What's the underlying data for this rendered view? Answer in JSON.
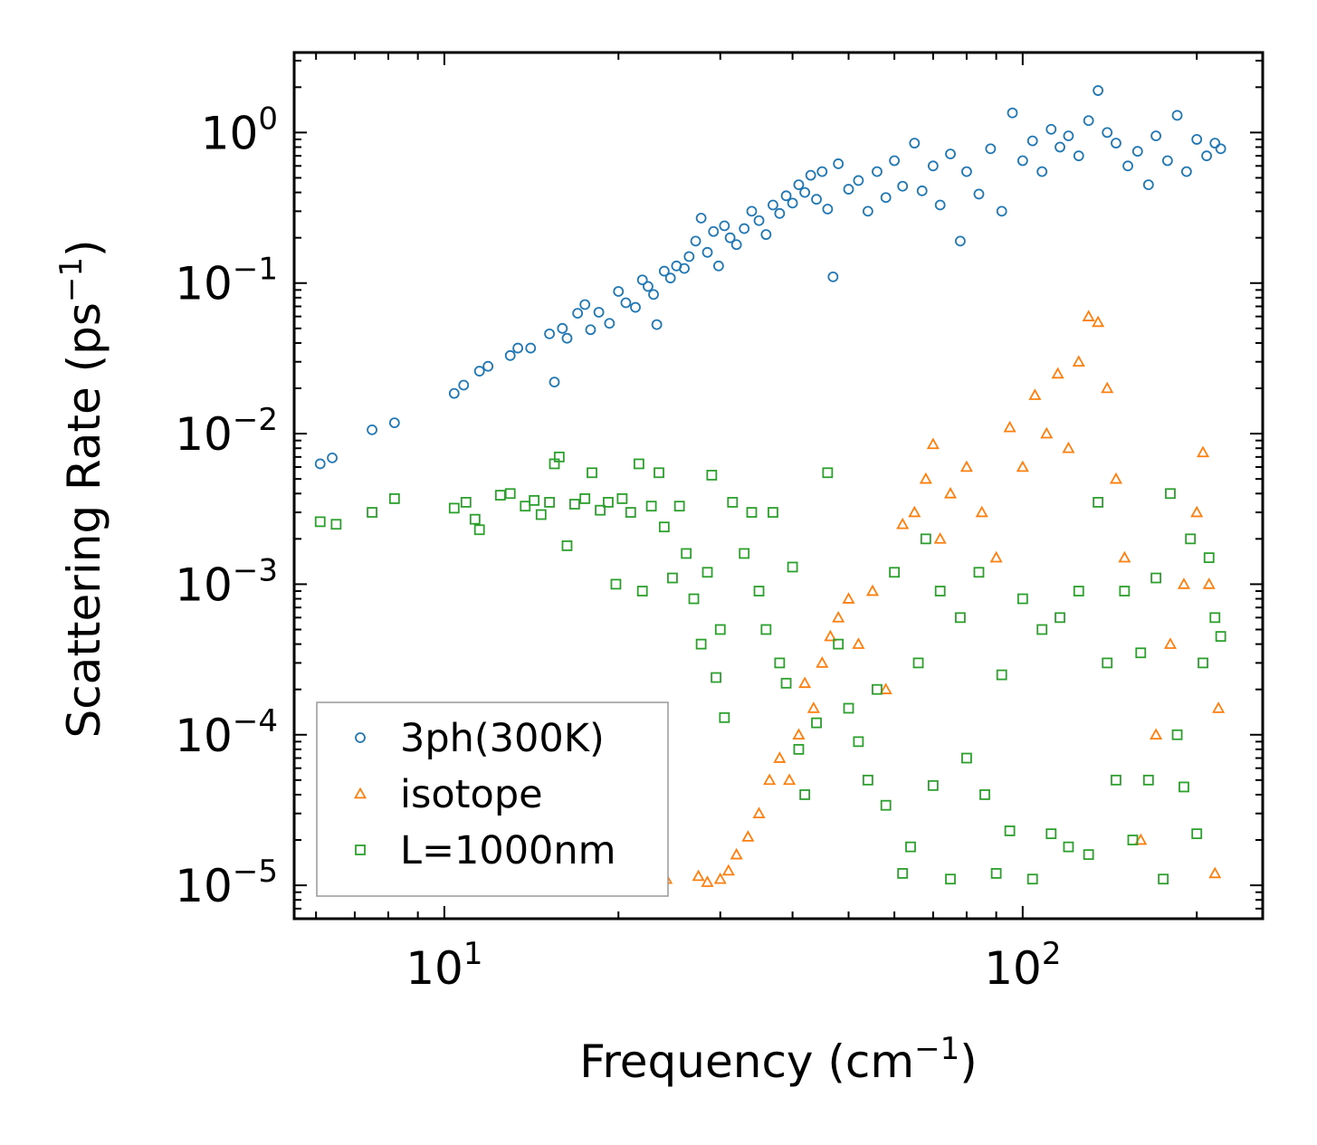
{
  "chart_data": {
    "type": "scatter",
    "title": "",
    "xlabel": "Frequency (cm⁻¹)",
    "ylabel": "Scattering Rate (ps⁻¹)",
    "xscale": "log",
    "yscale": "log",
    "xlim": [
      5.5,
      260
    ],
    "ylim": [
      6e-06,
      3.4
    ],
    "x_ticks": [
      {
        "value": 10,
        "base": "10",
        "exp": "1"
      },
      {
        "value": 100,
        "base": "10",
        "exp": "2"
      }
    ],
    "y_ticks": [
      {
        "value": 1,
        "base": "10",
        "exp": "0"
      },
      {
        "value": 0.1,
        "base": "10",
        "exp": "−1"
      },
      {
        "value": 0.01,
        "base": "10",
        "exp": "−2"
      },
      {
        "value": 0.001,
        "base": "10",
        "exp": "−3"
      },
      {
        "value": 0.0001,
        "base": "10",
        "exp": "−4"
      },
      {
        "value": 1e-05,
        "base": "10",
        "exp": "−5"
      }
    ],
    "legend_position": "lower-left",
    "series": [
      {
        "name": "3ph(300K)",
        "marker": "circle",
        "color": "#1f77b4",
        "points": [
          [
            6.1,
            0.0063
          ],
          [
            6.4,
            0.0069
          ],
          [
            7.5,
            0.0106
          ],
          [
            8.2,
            0.0118
          ],
          [
            10.4,
            0.0185
          ],
          [
            10.8,
            0.021
          ],
          [
            11.5,
            0.026
          ],
          [
            11.9,
            0.028
          ],
          [
            13.0,
            0.033
          ],
          [
            13.4,
            0.037
          ],
          [
            14.1,
            0.037
          ],
          [
            15.2,
            0.046
          ],
          [
            16.0,
            0.05
          ],
          [
            16.3,
            0.043
          ],
          [
            17.0,
            0.063
          ],
          [
            17.5,
            0.072
          ],
          [
            17.9,
            0.049
          ],
          [
            18.5,
            0.064
          ],
          [
            19.3,
            0.054
          ],
          [
            20.0,
            0.088
          ],
          [
            20.6,
            0.074
          ],
          [
            21.4,
            0.069
          ],
          [
            22.0,
            0.105
          ],
          [
            22.5,
            0.095
          ],
          [
            23.0,
            0.084
          ],
          [
            23.3,
            0.053
          ],
          [
            15.5,
            0.022
          ],
          [
            24.0,
            0.12
          ],
          [
            24.6,
            0.108
          ],
          [
            25.2,
            0.13
          ],
          [
            26.0,
            0.125
          ],
          [
            26.5,
            0.15
          ],
          [
            27.2,
            0.19
          ],
          [
            27.8,
            0.27
          ],
          [
            28.5,
            0.16
          ],
          [
            29.2,
            0.22
          ],
          [
            29.8,
            0.13
          ],
          [
            30.5,
            0.24
          ],
          [
            31.2,
            0.2
          ],
          [
            32.0,
            0.18
          ],
          [
            33.0,
            0.23
          ],
          [
            34.0,
            0.3
          ],
          [
            35.0,
            0.26
          ],
          [
            36.0,
            0.21
          ],
          [
            37.0,
            0.33
          ],
          [
            38.0,
            0.29
          ],
          [
            39.0,
            0.38
          ],
          [
            40.0,
            0.34
          ],
          [
            41.0,
            0.45
          ],
          [
            42.0,
            0.4
          ],
          [
            43.0,
            0.52
          ],
          [
            44.0,
            0.36
          ],
          [
            45.0,
            0.55
          ],
          [
            46.0,
            0.31
          ],
          [
            47.0,
            0.11
          ],
          [
            48.0,
            0.62
          ],
          [
            50.0,
            0.42
          ],
          [
            52.0,
            0.48
          ],
          [
            54.0,
            0.3
          ],
          [
            56.0,
            0.55
          ],
          [
            58.0,
            0.37
          ],
          [
            60.0,
            0.65
          ],
          [
            62.0,
            0.44
          ],
          [
            65.0,
            0.85
          ],
          [
            67.0,
            0.41
          ],
          [
            70.0,
            0.6
          ],
          [
            72.0,
            0.33
          ],
          [
            75.0,
            0.72
          ],
          [
            78.0,
            0.19
          ],
          [
            80.0,
            0.55
          ],
          [
            84.0,
            0.39
          ],
          [
            88.0,
            0.78
          ],
          [
            92.0,
            0.3
          ],
          [
            96.0,
            1.35
          ],
          [
            100.0,
            0.65
          ],
          [
            104.0,
            0.88
          ],
          [
            108.0,
            0.55
          ],
          [
            112.0,
            1.05
          ],
          [
            116.0,
            0.8
          ],
          [
            120.0,
            0.95
          ],
          [
            125.0,
            0.7
          ],
          [
            130.0,
            1.2
          ],
          [
            135.0,
            1.9
          ],
          [
            140.0,
            1.0
          ],
          [
            145.0,
            0.85
          ],
          [
            152.0,
            0.6
          ],
          [
            158.0,
            0.75
          ],
          [
            165.0,
            0.45
          ],
          [
            170.0,
            0.95
          ],
          [
            178.0,
            0.65
          ],
          [
            185.0,
            1.3
          ],
          [
            192.0,
            0.55
          ],
          [
            200.0,
            0.9
          ],
          [
            208.0,
            0.7
          ],
          [
            215.0,
            0.85
          ],
          [
            220.0,
            0.78
          ]
        ]
      },
      {
        "name": "isotope",
        "marker": "triangle",
        "color": "#ff7f0e",
        "points": [
          [
            24.2,
            1.1e-05
          ],
          [
            27.5,
            1.15e-05
          ],
          [
            28.5,
            1.05e-05
          ],
          [
            30.0,
            1.1e-05
          ],
          [
            31.0,
            1.25e-05
          ],
          [
            32.0,
            1.6e-05
          ],
          [
            33.5,
            2.1e-05
          ],
          [
            35.0,
            3e-05
          ],
          [
            36.5,
            5e-05
          ],
          [
            38.0,
            7e-05
          ],
          [
            39.5,
            5e-05
          ],
          [
            41.0,
            0.0001
          ],
          [
            42.0,
            0.00022
          ],
          [
            43.5,
            0.00015
          ],
          [
            45.0,
            0.0003
          ],
          [
            46.5,
            0.00045
          ],
          [
            48.0,
            0.0006
          ],
          [
            50.0,
            0.0008
          ],
          [
            52.0,
            0.0004
          ],
          [
            55.0,
            0.0009
          ],
          [
            58.0,
            0.0002
          ],
          [
            62.0,
            0.0025
          ],
          [
            65.0,
            0.003
          ],
          [
            68.0,
            0.005
          ],
          [
            70.0,
            0.0085
          ],
          [
            72.0,
            0.002
          ],
          [
            75.0,
            0.004
          ],
          [
            80.0,
            0.006
          ],
          [
            85.0,
            0.003
          ],
          [
            90.0,
            0.0015
          ],
          [
            95.0,
            0.011
          ],
          [
            100.0,
            0.006
          ],
          [
            105.0,
            0.018
          ],
          [
            110.0,
            0.01
          ],
          [
            115.0,
            0.025
          ],
          [
            120.0,
            0.008
          ],
          [
            125.0,
            0.03
          ],
          [
            130.0,
            0.06
          ],
          [
            135.0,
            0.055
          ],
          [
            140.0,
            0.02
          ],
          [
            145.0,
            0.005
          ],
          [
            150.0,
            0.0015
          ],
          [
            160.0,
            2e-05
          ],
          [
            170.0,
            0.0001
          ],
          [
            180.0,
            0.0004
          ],
          [
            190.0,
            0.001
          ],
          [
            200.0,
            0.003
          ],
          [
            205.0,
            0.0075
          ],
          [
            210.0,
            0.001
          ],
          [
            215.0,
            1.2e-05
          ],
          [
            218.0,
            0.00015
          ]
        ]
      },
      {
        "name": "L=1000nm",
        "marker": "square",
        "color": "#2ca02c",
        "points": [
          [
            6.1,
            0.0026
          ],
          [
            6.5,
            0.0025
          ],
          [
            7.5,
            0.003
          ],
          [
            8.2,
            0.0037
          ],
          [
            10.4,
            0.0032
          ],
          [
            10.9,
            0.0035
          ],
          [
            11.3,
            0.0027
          ],
          [
            11.5,
            0.0023
          ],
          [
            12.5,
            0.0039
          ],
          [
            13.0,
            0.004
          ],
          [
            13.8,
            0.0033
          ],
          [
            14.3,
            0.0036
          ],
          [
            14.7,
            0.0029
          ],
          [
            15.2,
            0.0035
          ],
          [
            15.5,
            0.0063
          ],
          [
            15.8,
            0.007
          ],
          [
            16.3,
            0.0018
          ],
          [
            16.8,
            0.0034
          ],
          [
            17.5,
            0.0037
          ],
          [
            18.0,
            0.0055
          ],
          [
            18.6,
            0.0031
          ],
          [
            19.2,
            0.0035
          ],
          [
            19.8,
            0.001
          ],
          [
            20.3,
            0.0037
          ],
          [
            21.0,
            0.003
          ],
          [
            21.7,
            0.0063
          ],
          [
            22.0,
            0.0009
          ],
          [
            22.8,
            0.0033
          ],
          [
            23.5,
            0.0055
          ],
          [
            24.0,
            0.0024
          ],
          [
            24.8,
            0.0011
          ],
          [
            25.5,
            0.0033
          ],
          [
            26.2,
            0.0016
          ],
          [
            27.0,
            0.0008
          ],
          [
            27.8,
            0.0004
          ],
          [
            28.5,
            0.0012
          ],
          [
            29.0,
            0.0053
          ],
          [
            29.5,
            0.00024
          ],
          [
            30.0,
            0.0005
          ],
          [
            30.5,
            0.00013
          ],
          [
            31.5,
            0.0035
          ],
          [
            33.0,
            0.0016
          ],
          [
            34.0,
            0.003
          ],
          [
            35.0,
            0.0009
          ],
          [
            36.0,
            0.0005
          ],
          [
            37.0,
            0.003
          ],
          [
            38.0,
            0.0003
          ],
          [
            39.0,
            0.00022
          ],
          [
            40.0,
            0.0013
          ],
          [
            41.0,
            8e-05
          ],
          [
            42.0,
            4e-05
          ],
          [
            44.0,
            0.00012
          ],
          [
            46.0,
            0.0055
          ],
          [
            48.0,
            0.0004
          ],
          [
            50.0,
            0.00015
          ],
          [
            52.0,
            9e-05
          ],
          [
            54.0,
            5e-05
          ],
          [
            56.0,
            0.0002
          ],
          [
            58.0,
            3.4e-05
          ],
          [
            60.0,
            0.0012
          ],
          [
            62.0,
            1.2e-05
          ],
          [
            64.0,
            1.8e-05
          ],
          [
            66.0,
            0.0003
          ],
          [
            68.0,
            0.002
          ],
          [
            70.0,
            4.6e-05
          ],
          [
            72.0,
            0.0009
          ],
          [
            75.0,
            1.1e-05
          ],
          [
            78.0,
            0.0006
          ],
          [
            80.0,
            7e-05
          ],
          [
            84.0,
            0.0012
          ],
          [
            86.0,
            4e-05
          ],
          [
            90.0,
            1.2e-05
          ],
          [
            92.0,
            0.00025
          ],
          [
            95.0,
            2.3e-05
          ],
          [
            100.0,
            0.0008
          ],
          [
            104.0,
            1.1e-05
          ],
          [
            108.0,
            0.0005
          ],
          [
            112.0,
            2.2e-05
          ],
          [
            116.0,
            0.0006
          ],
          [
            120.0,
            1.8e-05
          ],
          [
            125.0,
            0.0009
          ],
          [
            130.0,
            1.6e-05
          ],
          [
            135.0,
            0.0035
          ],
          [
            140.0,
            0.0003
          ],
          [
            145.0,
            5e-05
          ],
          [
            150.0,
            0.0009
          ],
          [
            155.0,
            2e-05
          ],
          [
            160.0,
            0.00035
          ],
          [
            165.0,
            5e-05
          ],
          [
            170.0,
            0.0011
          ],
          [
            175.0,
            1.1e-05
          ],
          [
            180.0,
            0.004
          ],
          [
            185.0,
            0.0001
          ],
          [
            190.0,
            4.5e-05
          ],
          [
            195.0,
            0.002
          ],
          [
            200.0,
            2.2e-05
          ],
          [
            205.0,
            0.0003
          ],
          [
            210.0,
            0.0015
          ],
          [
            215.0,
            0.0006
          ],
          [
            220.0,
            0.00045
          ]
        ]
      }
    ]
  }
}
